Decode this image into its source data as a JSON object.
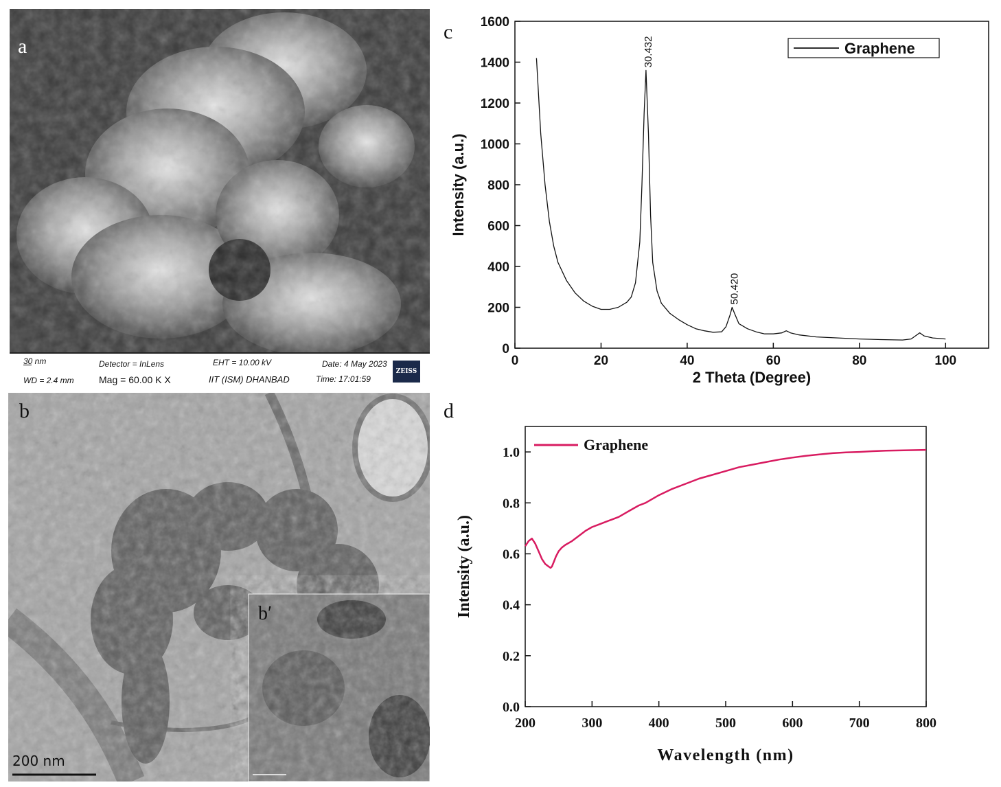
{
  "panels": {
    "a": {
      "letter": "a",
      "sem_info": {
        "scale_bar": "30 nm",
        "wd": "WD =  2.4 mm",
        "detector": "Detector = InLens",
        "mag": "Mag =    60.00 K X",
        "eht": "EHT = 10.00 kV",
        "institution": "IIT (ISM) DHANBAD",
        "date": "Date: 4 May 2023",
        "time": "Time: 17:01:59",
        "logo_text": "ZEISS"
      }
    },
    "b": {
      "letter": "b",
      "inset_letter": "b′",
      "scale_bar": "200 nm"
    },
    "c": {
      "letter": "c"
    },
    "d": {
      "letter": "d"
    }
  },
  "chart_data": [
    {
      "id": "c",
      "type": "line",
      "xlabel": "2 Theta (Degree)",
      "ylabel": "Intensity (a.u.)",
      "xlim": [
        0,
        110
      ],
      "ylim": [
        0,
        1600
      ],
      "xticks": [
        0,
        20,
        40,
        60,
        80,
        100
      ],
      "yticks": [
        0,
        200,
        400,
        600,
        800,
        1000,
        1200,
        1400,
        1600
      ],
      "legend": {
        "position": "top-right",
        "entries": [
          "Graphene"
        ]
      },
      "grid": false,
      "color": "#111111",
      "series": [
        {
          "name": "Graphene",
          "x": [
            5,
            6,
            7,
            8,
            9,
            10,
            12,
            14,
            16,
            18,
            20,
            22,
            24,
            26,
            27,
            28,
            29,
            29.5,
            30,
            30.432,
            31,
            31.5,
            32,
            33,
            34,
            36,
            38,
            40,
            42,
            44,
            46,
            48,
            49,
            50,
            50.42,
            51,
            52,
            54,
            56,
            58,
            60,
            62,
            63,
            64,
            66,
            70,
            75,
            80,
            85,
            90,
            92,
            93,
            94,
            95,
            97,
            100
          ],
          "y": [
            1420,
            1050,
            800,
            620,
            500,
            420,
            330,
            270,
            230,
            205,
            190,
            190,
            200,
            225,
            250,
            320,
            520,
            800,
            1150,
            1360,
            1050,
            650,
            420,
            280,
            220,
            170,
            140,
            115,
            95,
            85,
            78,
            80,
            105,
            165,
            200,
            170,
            120,
            95,
            80,
            70,
            70,
            75,
            85,
            75,
            65,
            55,
            50,
            45,
            42,
            40,
            45,
            60,
            75,
            60,
            50,
            45
          ]
        }
      ],
      "annotations": [
        {
          "text": "30.432",
          "x": 30.432,
          "y": 1360
        },
        {
          "text": "50.420",
          "x": 50.42,
          "y": 200
        }
      ]
    },
    {
      "id": "d",
      "type": "line",
      "xlabel": "Wavelength (nm)",
      "ylabel": "Intensity (a.u.)",
      "xlim": [
        200,
        800
      ],
      "ylim": [
        0,
        1.1
      ],
      "xticks": [
        200,
        300,
        400,
        500,
        600,
        700,
        800
      ],
      "yticks": [
        "0.0",
        "0.2",
        "0.4",
        "0.6",
        "0.8",
        "1.0"
      ],
      "legend": {
        "position": "top-left",
        "entries": [
          "Graphene"
        ]
      },
      "grid": false,
      "color": "#d81b60",
      "series": [
        {
          "name": "Graphene",
          "x": [
            200,
            205,
            210,
            215,
            220,
            225,
            230,
            235,
            238,
            240,
            243,
            246,
            250,
            255,
            260,
            270,
            280,
            290,
            300,
            310,
            320,
            330,
            340,
            350,
            360,
            370,
            380,
            400,
            420,
            440,
            460,
            480,
            500,
            520,
            540,
            560,
            580,
            600,
            620,
            640,
            660,
            680,
            700,
            720,
            740,
            760,
            780,
            800
          ],
          "y": [
            0.63,
            0.65,
            0.66,
            0.64,
            0.61,
            0.58,
            0.56,
            0.55,
            0.545,
            0.55,
            0.57,
            0.59,
            0.61,
            0.625,
            0.635,
            0.65,
            0.67,
            0.69,
            0.705,
            0.715,
            0.725,
            0.735,
            0.745,
            0.76,
            0.775,
            0.79,
            0.8,
            0.83,
            0.855,
            0.875,
            0.895,
            0.91,
            0.925,
            0.94,
            0.95,
            0.96,
            0.97,
            0.978,
            0.985,
            0.99,
            0.995,
            0.998,
            1.0,
            1.003,
            1.005,
            1.006,
            1.007,
            1.008
          ]
        }
      ]
    }
  ]
}
